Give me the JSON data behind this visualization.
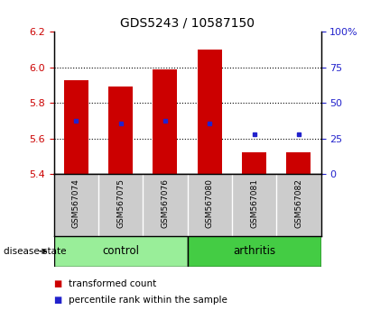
{
  "title": "GDS5243 / 10587150",
  "samples": [
    "GSM567074",
    "GSM567075",
    "GSM567076",
    "GSM567080",
    "GSM567081",
    "GSM567082"
  ],
  "bar_bottoms": [
    5.4,
    5.4,
    5.4,
    5.4,
    5.4,
    5.4
  ],
  "bar_tops": [
    5.93,
    5.89,
    5.99,
    6.1,
    5.52,
    5.52
  ],
  "blue_markers": [
    5.7,
    5.685,
    5.7,
    5.685,
    5.625,
    5.625
  ],
  "ylim_left": [
    5.4,
    6.2
  ],
  "ylim_right": [
    0,
    100
  ],
  "yticks_left": [
    5.4,
    5.6,
    5.8,
    6.0,
    6.2
  ],
  "yticks_right": [
    0,
    25,
    50,
    75,
    100
  ],
  "ytick_labels_right": [
    "0",
    "25",
    "50",
    "75",
    "100%"
  ],
  "dotted_lines": [
    5.6,
    5.8,
    6.0
  ],
  "control_label": "control",
  "arthritis_label": "arthritis",
  "disease_state_label": "disease state",
  "bar_color": "#cc0000",
  "marker_color": "#2222cc",
  "control_color": "#99ee99",
  "arthritis_color": "#44cc44",
  "label_color_red": "#cc0000",
  "label_color_blue": "#2222cc",
  "legend_red_label": "transformed count",
  "legend_blue_label": "percentile rank within the sample",
  "gray_color": "#cccccc",
  "background_color": "#ffffff"
}
